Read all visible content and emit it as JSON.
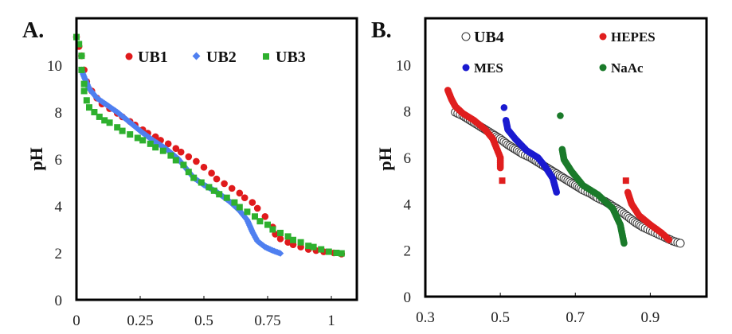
{
  "chart_data": [
    {
      "type": "scatter",
      "panel_label": "A.",
      "xlabel": "",
      "ylabel": "pH",
      "xlim": [
        0,
        1.1
      ],
      "ylim": [
        0,
        12
      ],
      "xticks": [
        "0",
        "0.25",
        "0.5",
        "0.75",
        "1"
      ],
      "xtick_values": [
        0,
        0.25,
        0.5,
        0.75,
        1
      ],
      "yticks": [
        "0",
        "2",
        "4",
        "6",
        "8",
        "10"
      ],
      "ytick_values": [
        0,
        2,
        4,
        6,
        8,
        10
      ],
      "grid": false,
      "legend_position": "top-right",
      "series": [
        {
          "name": "UB1",
          "marker": "circle",
          "color": "#e01a1c",
          "points": [
            [
              0,
              11.2
            ],
            [
              0.01,
              10.8
            ],
            [
              0.02,
              10.4
            ],
            [
              0.03,
              9.8
            ],
            [
              0.04,
              9.3
            ],
            [
              0.06,
              8.9
            ],
            [
              0.08,
              8.6
            ],
            [
              0.1,
              8.35
            ],
            [
              0.13,
              8.15
            ],
            [
              0.16,
              7.95
            ],
            [
              0.18,
              7.8
            ],
            [
              0.21,
              7.6
            ],
            [
              0.23,
              7.45
            ],
            [
              0.26,
              7.25
            ],
            [
              0.28,
              7.1
            ],
            [
              0.31,
              6.95
            ],
            [
              0.33,
              6.8
            ],
            [
              0.36,
              6.65
            ],
            [
              0.39,
              6.45
            ],
            [
              0.41,
              6.3
            ],
            [
              0.44,
              6.1
            ],
            [
              0.47,
              5.9
            ],
            [
              0.5,
              5.65
            ],
            [
              0.53,
              5.4
            ],
            [
              0.55,
              5.15
            ],
            [
              0.58,
              4.95
            ],
            [
              0.61,
              4.75
            ],
            [
              0.64,
              4.55
            ],
            [
              0.66,
              4.35
            ],
            [
              0.69,
              4.15
            ],
            [
              0.71,
              3.9
            ],
            [
              0.74,
              3.55
            ],
            [
              0.77,
              3.1
            ],
            [
              0.78,
              2.8
            ],
            [
              0.8,
              2.6
            ],
            [
              0.83,
              2.45
            ],
            [
              0.85,
              2.35
            ],
            [
              0.88,
              2.25
            ],
            [
              0.91,
              2.15
            ],
            [
              0.94,
              2.1
            ],
            [
              0.97,
              2.05
            ],
            [
              1.01,
              2.0
            ],
            [
              1.04,
              1.95
            ]
          ]
        },
        {
          "name": "UB2",
          "marker": "diamond",
          "color": "#4f7ff0",
          "points": [
            [
              0.02,
              9.8
            ],
            [
              0.03,
              9.5
            ],
            [
              0.05,
              9.0
            ],
            [
              0.08,
              8.6
            ],
            [
              0.12,
              8.3
            ],
            [
              0.16,
              8.0
            ],
            [
              0.2,
              7.65
            ],
            [
              0.25,
              7.2
            ],
            [
              0.3,
              6.8
            ],
            [
              0.35,
              6.45
            ],
            [
              0.4,
              6.0
            ],
            [
              0.43,
              5.6
            ],
            [
              0.46,
              5.2
            ],
            [
              0.5,
              4.9
            ],
            [
              0.55,
              4.6
            ],
            [
              0.6,
              4.2
            ],
            [
              0.64,
              3.8
            ],
            [
              0.67,
              3.4
            ],
            [
              0.69,
              2.9
            ],
            [
              0.71,
              2.5
            ],
            [
              0.74,
              2.25
            ],
            [
              0.77,
              2.1
            ],
            [
              0.8,
              1.98
            ]
          ]
        },
        {
          "name": "UB3",
          "marker": "square",
          "color": "#2eb02e",
          "points": [
            [
              0,
              11.2
            ],
            [
              0.01,
              10.9
            ],
            [
              0.02,
              10.4
            ],
            [
              0.02,
              9.8
            ],
            [
              0.03,
              9.2
            ],
            [
              0.03,
              8.9
            ],
            [
              0.04,
              8.5
            ],
            [
              0.05,
              8.2
            ],
            [
              0.07,
              8.0
            ],
            [
              0.09,
              7.8
            ],
            [
              0.11,
              7.65
            ],
            [
              0.13,
              7.55
            ],
            [
              0.16,
              7.35
            ],
            [
              0.18,
              7.2
            ],
            [
              0.21,
              7.05
            ],
            [
              0.24,
              6.9
            ],
            [
              0.26,
              6.8
            ],
            [
              0.29,
              6.65
            ],
            [
              0.31,
              6.5
            ],
            [
              0.34,
              6.35
            ],
            [
              0.37,
              6.15
            ],
            [
              0.39,
              5.95
            ],
            [
              0.42,
              5.75
            ],
            [
              0.44,
              5.45
            ],
            [
              0.46,
              5.2
            ],
            [
              0.49,
              5.0
            ],
            [
              0.52,
              4.8
            ],
            [
              0.54,
              4.65
            ],
            [
              0.56,
              4.5
            ],
            [
              0.59,
              4.35
            ],
            [
              0.62,
              4.15
            ],
            [
              0.64,
              3.95
            ],
            [
              0.67,
              3.75
            ],
            [
              0.7,
              3.55
            ],
            [
              0.72,
              3.35
            ],
            [
              0.75,
              3.2
            ],
            [
              0.77,
              3.0
            ],
            [
              0.8,
              2.85
            ],
            [
              0.83,
              2.7
            ],
            [
              0.85,
              2.55
            ],
            [
              0.88,
              2.45
            ],
            [
              0.91,
              2.3
            ],
            [
              0.93,
              2.25
            ],
            [
              0.96,
              2.15
            ],
            [
              0.99,
              2.05
            ],
            [
              1.02,
              2.0
            ],
            [
              1.04,
              1.98
            ]
          ]
        }
      ]
    },
    {
      "type": "scatter",
      "panel_label": "B.",
      "xlabel": "",
      "ylabel": "pH",
      "xlim": [
        0.3,
        1.05
      ],
      "ylim": [
        0,
        12
      ],
      "xticks": [
        "0.3",
        "0.5",
        "0.7",
        "0.9"
      ],
      "xtick_values": [
        0.3,
        0.5,
        0.7,
        0.9
      ],
      "yticks": [
        "0",
        "2",
        "4",
        "6",
        "8",
        "10"
      ],
      "ytick_values": [
        0,
        2,
        4,
        6,
        8,
        10
      ],
      "grid": false,
      "legend_position": "top",
      "series": [
        {
          "name": "UB4",
          "marker": "open-circle",
          "color": "#333333",
          "points": [
            [
              0.38,
              7.95
            ],
            [
              0.4,
              7.8
            ],
            [
              0.42,
              7.6
            ],
            [
              0.44,
              7.4
            ],
            [
              0.46,
              7.2
            ],
            [
              0.48,
              7.0
            ],
            [
              0.5,
              6.8
            ],
            [
              0.52,
              6.55
            ],
            [
              0.54,
              6.35
            ],
            [
              0.56,
              6.15
            ],
            [
              0.58,
              6.0
            ],
            [
              0.6,
              5.8
            ],
            [
              0.62,
              5.6
            ],
            [
              0.64,
              5.4
            ],
            [
              0.66,
              5.2
            ],
            [
              0.68,
              5.0
            ],
            [
              0.7,
              4.8
            ],
            [
              0.72,
              4.6
            ],
            [
              0.74,
              4.45
            ],
            [
              0.76,
              4.25
            ],
            [
              0.78,
              4.1
            ],
            [
              0.8,
              3.9
            ],
            [
              0.82,
              3.7
            ],
            [
              0.84,
              3.45
            ],
            [
              0.86,
              3.2
            ],
            [
              0.88,
              3.0
            ],
            [
              0.9,
              2.85
            ],
            [
              0.92,
              2.7
            ],
            [
              0.94,
              2.55
            ],
            [
              0.96,
              2.4
            ],
            [
              0.98,
              2.3
            ]
          ]
        },
        {
          "name": "HEPES",
          "marker": "circle",
          "color": "#e01e1e",
          "segments": [
            [
              [
                0.36,
                8.9
              ],
              [
                0.37,
                8.5
              ],
              [
                0.38,
                8.2
              ],
              [
                0.4,
                7.9
              ],
              [
                0.43,
                7.6
              ],
              [
                0.46,
                7.2
              ],
              [
                0.48,
                6.8
              ],
              [
                0.49,
                6.4
              ],
              [
                0.5,
                6.0
              ],
              [
                0.5,
                5.55
              ]
            ],
            [
              [
                0.84,
                4.5
              ],
              [
                0.85,
                4.0
              ],
              [
                0.87,
                3.5
              ],
              [
                0.9,
                3.1
              ],
              [
                0.93,
                2.75
              ],
              [
                0.95,
                2.45
              ]
            ]
          ],
          "square_points": [
            [
              0.505,
              5.0
            ],
            [
              0.835,
              5.0
            ]
          ]
        },
        {
          "name": "MES",
          "marker": "circle",
          "color": "#1a1ad0",
          "points": [
            [
              0.51,
              8.15
            ]
          ],
          "segments": [
            [
              [
                0.515,
                7.6
              ],
              [
                0.52,
                7.2
              ],
              [
                0.54,
                6.8
              ],
              [
                0.57,
                6.3
              ],
              [
                0.6,
                6.0
              ],
              [
                0.62,
                5.6
              ],
              [
                0.64,
                5.1
              ],
              [
                0.65,
                4.5
              ]
            ]
          ]
        },
        {
          "name": "NaAc",
          "marker": "circle",
          "color": "#1a7a2a",
          "points": [
            [
              0.66,
              7.8
            ]
          ],
          "segments": [
            [
              [
                0.665,
                6.35
              ],
              [
                0.67,
                5.9
              ],
              [
                0.69,
                5.4
              ],
              [
                0.72,
                4.8
              ],
              [
                0.76,
                4.4
              ],
              [
                0.8,
                3.8
              ],
              [
                0.82,
                3.1
              ],
              [
                0.83,
                2.3
              ]
            ]
          ]
        }
      ]
    }
  ]
}
